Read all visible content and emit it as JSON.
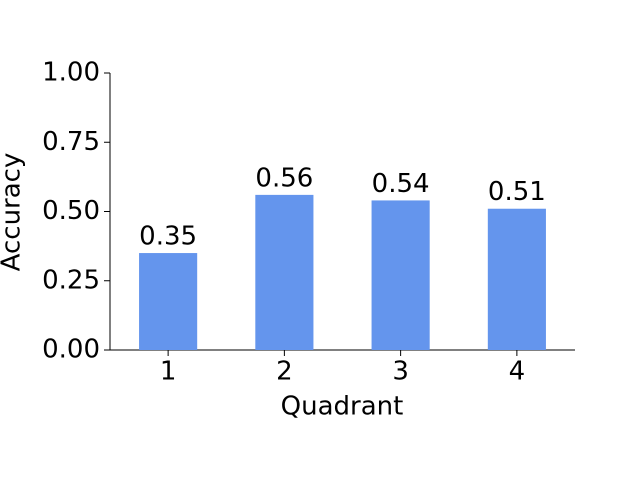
{
  "chart_data": {
    "type": "bar",
    "categories": [
      "1",
      "2",
      "3",
      "4"
    ],
    "values": [
      0.35,
      0.56,
      0.54,
      0.51
    ],
    "color": "#6495ed",
    "xlabel": "Quadrant",
    "ylabel": "Accuracy",
    "ylim": [
      0,
      1
    ],
    "yticks": [
      {
        "value": 0,
        "label": "0.00"
      },
      {
        "value": 0.25,
        "label": "0.25"
      },
      {
        "value": 0.5,
        "label": "0.50"
      },
      {
        "value": 0.75,
        "label": "0.75"
      },
      {
        "value": 1,
        "label": "1.00"
      }
    ],
    "grid": false,
    "value_labels_shown": true
  }
}
